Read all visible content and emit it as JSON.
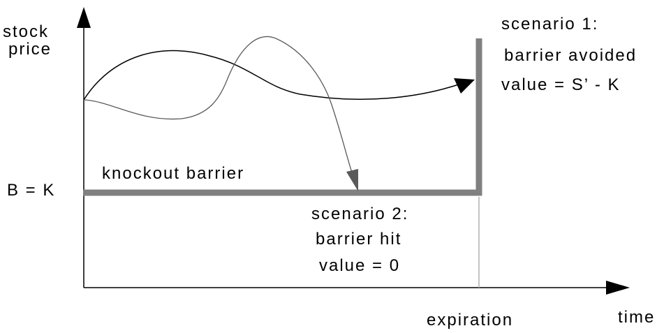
{
  "axes": {
    "y_label_line1": "stock",
    "y_label_line2": "price",
    "x_label": "time",
    "expiration_label": "expiration"
  },
  "barrier": {
    "level_label": "B = K",
    "name_label": "knockout barrier"
  },
  "scenario1": {
    "title": "scenario 1:",
    "line2": "barrier avoided",
    "line3": "value = S’ - K"
  },
  "scenario2": {
    "title": "scenario 2:",
    "line2": "barrier hit",
    "line3": "value = 0"
  },
  "colors": {
    "axis": "#000000",
    "barrier": "#808080",
    "path1": "#000000",
    "path2": "#5a5a5a"
  }
}
